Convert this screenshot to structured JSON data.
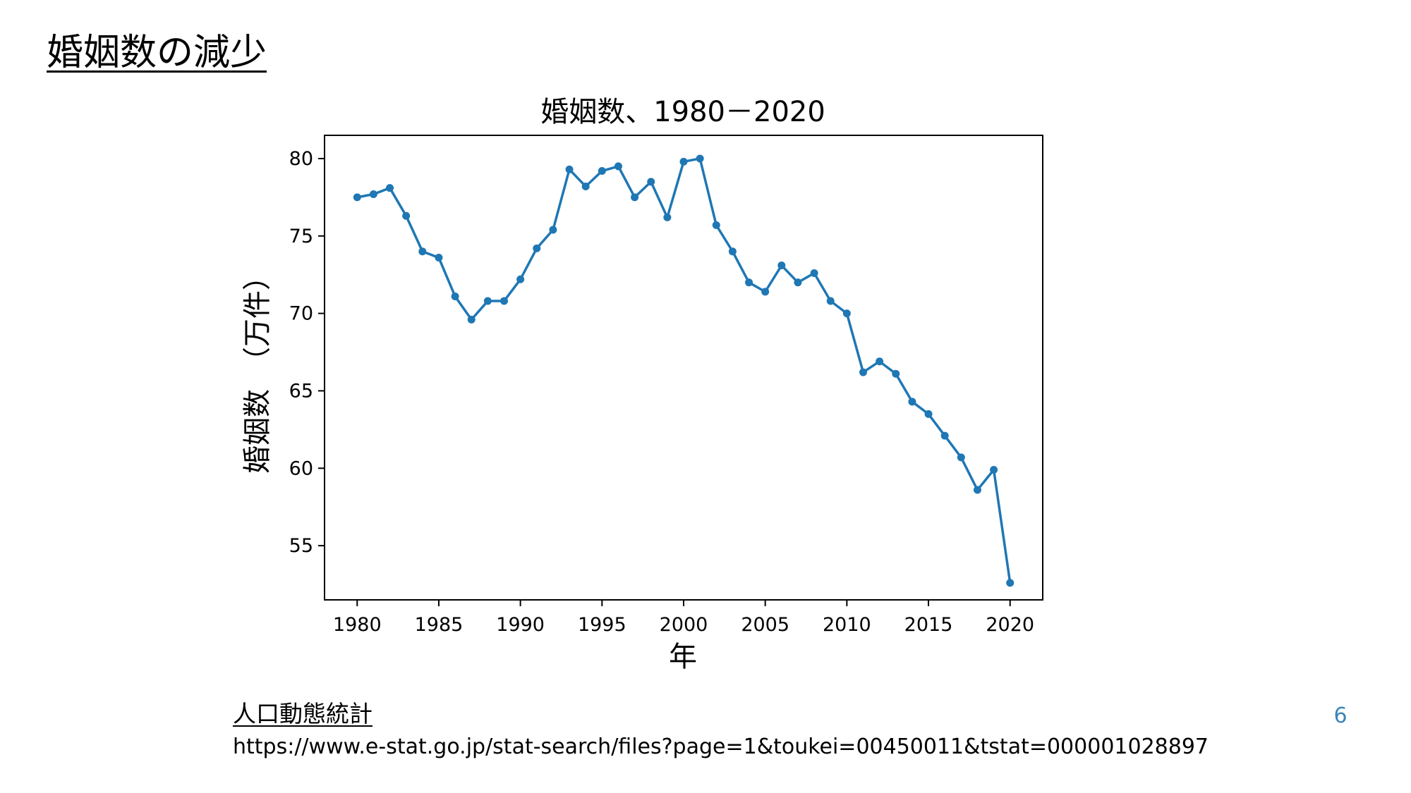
{
  "slide": {
    "title": "婚姻数の減少",
    "source_title": "人口動態統計",
    "source_url": "https://www.e-stat.go.jp/stat-search/files?page=1&toukei=00450011&tstat=000001028897",
    "page_number": "6"
  },
  "colors": {
    "series_line": "#1f77b4",
    "text": "#000000",
    "axis": "#000000",
    "page_number": "#3a85b8"
  },
  "chart_data": {
    "type": "line",
    "title": "婚姻数、1980－2020",
    "xlabel": "年",
    "ylabel": "婚姻数　（万件）",
    "xlim": [
      1978,
      2022
    ],
    "ylim": [
      51.5,
      81.5
    ],
    "xticks": [
      1980,
      1985,
      1990,
      1995,
      2000,
      2005,
      2010,
      2015,
      2020
    ],
    "yticks": [
      55,
      60,
      65,
      70,
      75,
      80
    ],
    "grid": false,
    "marker": "dot",
    "series": [
      {
        "x": [
          1980,
          1981,
          1982,
          1983,
          1984,
          1985,
          1986,
          1987,
          1988,
          1989,
          1990,
          1991,
          1992,
          1993,
          1994,
          1995,
          1996,
          1997,
          1998,
          1999,
          2000,
          2001,
          2002,
          2003,
          2004,
          2005,
          2006,
          2007,
          2008,
          2009,
          2010,
          2011,
          2012,
          2013,
          2014,
          2015,
          2016,
          2017,
          2018,
          2019,
          2020
        ],
        "y": [
          77.5,
          77.7,
          78.1,
          76.3,
          74.0,
          73.6,
          71.1,
          69.6,
          70.8,
          70.8,
          72.2,
          74.2,
          75.4,
          79.3,
          78.2,
          79.2,
          79.5,
          77.5,
          78.5,
          76.2,
          79.8,
          80.0,
          75.7,
          74.0,
          72.0,
          71.4,
          73.1,
          72.0,
          72.6,
          70.8,
          70.0,
          66.2,
          66.9,
          66.1,
          64.3,
          63.5,
          62.1,
          60.7,
          58.6,
          59.9,
          52.6
        ]
      }
    ]
  }
}
